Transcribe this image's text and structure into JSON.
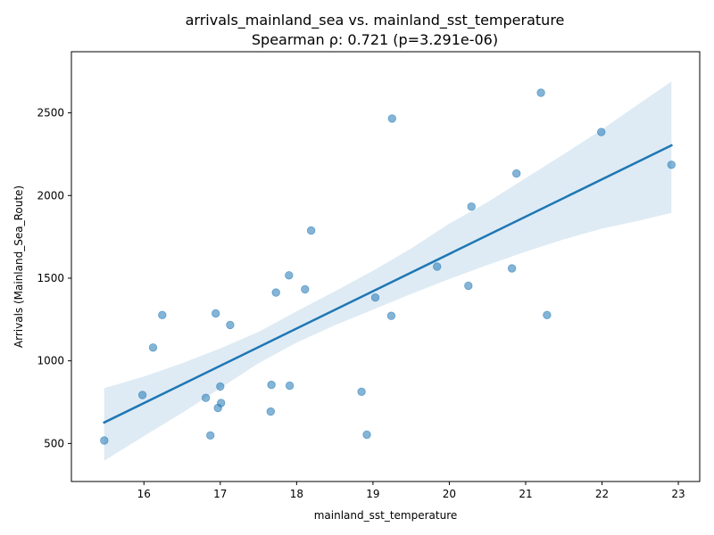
{
  "chart_data": {
    "type": "scatter",
    "title": "arrivals_mainland_sea vs. mainland_sst_temperature",
    "subtitle": "Spearman ρ: 0.721 (p=3.291e-06)",
    "xlabel": "mainland_sst_temperature",
    "ylabel": "Arrivals (Mainland_Sea_Route)",
    "xlim": [
      15.05,
      23.28
    ],
    "ylim": [
      270,
      2870
    ],
    "xticks": [
      16,
      17,
      18,
      19,
      20,
      21,
      22,
      23
    ],
    "yticks": [
      500,
      1000,
      1500,
      2000,
      2500
    ],
    "grid": false,
    "points": [
      {
        "x": 15.48,
        "y": 518
      },
      {
        "x": 15.98,
        "y": 793
      },
      {
        "x": 16.12,
        "y": 1080
      },
      {
        "x": 16.24,
        "y": 1277
      },
      {
        "x": 16.81,
        "y": 776
      },
      {
        "x": 16.87,
        "y": 549
      },
      {
        "x": 16.94,
        "y": 1287
      },
      {
        "x": 16.97,
        "y": 715
      },
      {
        "x": 17.0,
        "y": 845
      },
      {
        "x": 17.01,
        "y": 745
      },
      {
        "x": 17.13,
        "y": 1217
      },
      {
        "x": 17.66,
        "y": 693
      },
      {
        "x": 17.67,
        "y": 855
      },
      {
        "x": 17.73,
        "y": 1413
      },
      {
        "x": 17.9,
        "y": 1517
      },
      {
        "x": 17.91,
        "y": 850
      },
      {
        "x": 18.11,
        "y": 1433
      },
      {
        "x": 18.19,
        "y": 1788
      },
      {
        "x": 18.85,
        "y": 813
      },
      {
        "x": 18.92,
        "y": 553
      },
      {
        "x": 19.03,
        "y": 1383
      },
      {
        "x": 19.24,
        "y": 1272
      },
      {
        "x": 19.25,
        "y": 2466
      },
      {
        "x": 19.84,
        "y": 1570
      },
      {
        "x": 20.25,
        "y": 1454
      },
      {
        "x": 20.29,
        "y": 1933
      },
      {
        "x": 20.82,
        "y": 1559
      },
      {
        "x": 20.88,
        "y": 2133
      },
      {
        "x": 21.2,
        "y": 2622
      },
      {
        "x": 21.28,
        "y": 1277
      },
      {
        "x": 21.99,
        "y": 2384
      },
      {
        "x": 22.91,
        "y": 2186
      }
    ],
    "regression": {
      "x": [
        15.48,
        22.91
      ],
      "y": [
        627,
        2303
      ]
    },
    "confidence_band": {
      "x": [
        15.48,
        16.0,
        16.5,
        17.0,
        17.5,
        18.0,
        18.5,
        19.0,
        19.5,
        20.0,
        20.5,
        21.0,
        21.5,
        22.0,
        22.5,
        22.91
      ],
      "lower": [
        395,
        545,
        685,
        835,
        985,
        1110,
        1215,
        1310,
        1405,
        1495,
        1580,
        1660,
        1735,
        1800,
        1850,
        1895
      ],
      "upper": [
        835,
        905,
        985,
        1075,
        1175,
        1300,
        1420,
        1545,
        1680,
        1830,
        1960,
        2105,
        2250,
        2400,
        2560,
        2690
      ]
    },
    "colors": {
      "points": "#1f77b4",
      "line": "#1f77b4",
      "band": "#1f77b4"
    }
  }
}
